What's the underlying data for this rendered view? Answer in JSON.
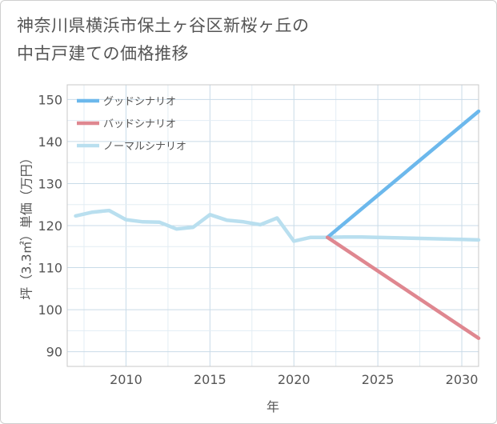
{
  "title_lines": [
    "神奈川県横浜市保土ヶ谷区新桜ヶ丘の",
    "中古戸建ての価格推移"
  ],
  "chart_data": {
    "type": "line",
    "title": "神奈川県横浜市保土ヶ谷区新桜ヶ丘の中古戸建ての価格推移",
    "xlabel": "年",
    "ylabel": "坪（3.3㎡）単価（万円）",
    "xlim": [
      2006.5,
      2031
    ],
    "ylim": [
      86.5,
      153.5
    ],
    "xticks": [
      2010,
      2015,
      2020,
      2025,
      2030
    ],
    "yticks": [
      90,
      100,
      110,
      120,
      130,
      140,
      150
    ],
    "legend_position": "top-left",
    "series": [
      {
        "name": "グッドシナリオ",
        "color": "#6cb8ec",
        "x": [
          2022,
          2031
        ],
        "y": [
          117.2,
          147.2
        ]
      },
      {
        "name": "バッドシナリオ",
        "color": "#df8790",
        "x": [
          2022,
          2031
        ],
        "y": [
          117.2,
          93.2
        ]
      },
      {
        "name": "ノーマルシナリオ",
        "color": "#b9dfef",
        "x": [
          2007,
          2008,
          2009,
          2010,
          2011,
          2012,
          2013,
          2014,
          2015,
          2016,
          2017,
          2018,
          2019,
          2020,
          2021,
          2022,
          2023,
          2024,
          2025,
          2026,
          2027,
          2028,
          2029,
          2030,
          2031
        ],
        "y": [
          122.3,
          123.2,
          123.6,
          121.4,
          120.9,
          120.8,
          119.2,
          119.6,
          122.6,
          121.3,
          120.9,
          120.2,
          121.8,
          116.3,
          117.2,
          117.2,
          117.3,
          117.3,
          117.2,
          117.1,
          117.0,
          116.9,
          116.8,
          116.7,
          116.6
        ]
      }
    ]
  }
}
